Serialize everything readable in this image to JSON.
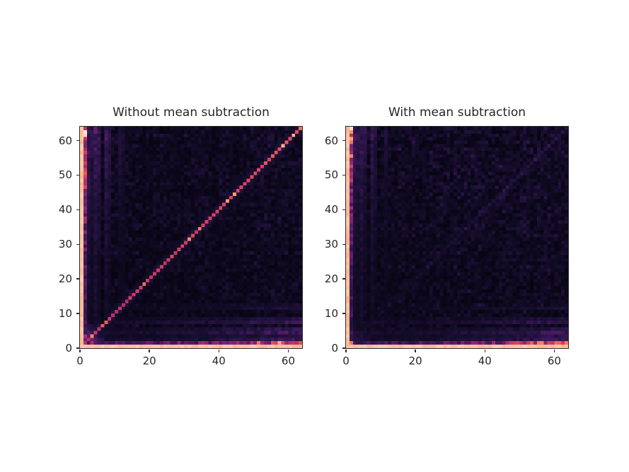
{
  "chart_data": [
    {
      "type": "heatmap",
      "title": "Without mean subtraction",
      "grid_size": 64,
      "x_range": [
        0,
        64
      ],
      "y_range": [
        0,
        64
      ],
      "x_ticks": [
        0,
        20,
        40,
        60
      ],
      "y_ticks": [
        0,
        10,
        20,
        30,
        40,
        50,
        60
      ],
      "legend": "none",
      "grid": "off",
      "description": "64x64 symmetric covariance-magnitude matrix of Fourier coefficients; bright cream DC row 0 and column 0, strong red diagonal, low-frequency magenta stripes near rows/cols 1-12 that intensify away from the origin",
      "pattern": {
        "seed": 7,
        "dc_value": 0.97,
        "noise_base": 0.1,
        "noise_gradient": 0.1,
        "origin_block": 1.0,
        "stripe_power": 2.0,
        "stripes": [
          {
            "idx": 1,
            "lo": 0.3,
            "hi": 0.8
          },
          {
            "idx": 2,
            "lo": 0.08,
            "hi": 0.3
          },
          {
            "idx": 3,
            "lo": 0.05,
            "hi": 0.22
          },
          {
            "idx": 4,
            "lo": 0.1,
            "hi": 0.34
          },
          {
            "idx": 5,
            "lo": 0.06,
            "hi": 0.26
          },
          {
            "idx": 7,
            "lo": 0.09,
            "hi": 0.3
          },
          {
            "idx": 8,
            "lo": 0.05,
            "hi": 0.2
          },
          {
            "idx": 11,
            "lo": 0.04,
            "hi": 0.16
          },
          {
            "idx": 12,
            "lo": 0.03,
            "hi": 0.13
          }
        ],
        "diagonal": {
          "start": 1,
          "lo": 0.66,
          "hi": 0.8,
          "jitter": 0.1,
          "pop": 0.1,
          "wing": 0.17
        },
        "special_cells": [
          {
            "r": 3,
            "c": 3,
            "v": 0.88
          },
          {
            "r": 3,
            "c": 1,
            "v": 0.62
          },
          {
            "r": 63,
            "c": 63,
            "v": 0.85
          }
        ]
      }
    },
    {
      "type": "heatmap",
      "title": "With mean subtraction",
      "grid_size": 64,
      "x_range": [
        0,
        64
      ],
      "y_range": [
        0,
        64
      ],
      "x_ticks": [
        0,
        20,
        40,
        60
      ],
      "y_ticks": [
        0,
        10,
        20,
        30,
        40,
        50,
        60
      ],
      "legend": "none",
      "grid": "off",
      "description": "Same matrix after mean subtraction: cream DC row/column and red low-frequency edge stripes remain, but the diagonal is strongly suppressed (only a faint purple trace toward high frequencies); background is dark noise slightly brighter toward the upper right",
      "pattern": {
        "seed": 13,
        "dc_value": 0.97,
        "noise_base": 0.11,
        "noise_gradient": 0.16,
        "origin_block": 0.5,
        "stripe_power": 2.4,
        "stripes": [
          {
            "idx": 1,
            "lo": 0.28,
            "hi": 0.8
          },
          {
            "idx": 2,
            "lo": 0.08,
            "hi": 0.28
          },
          {
            "idx": 3,
            "lo": 0.06,
            "hi": 0.24
          },
          {
            "idx": 4,
            "lo": 0.1,
            "hi": 0.3
          },
          {
            "idx": 5,
            "lo": 0.05,
            "hi": 0.22
          },
          {
            "idx": 7,
            "lo": 0.08,
            "hi": 0.26
          },
          {
            "idx": 8,
            "lo": 0.04,
            "hi": 0.18
          },
          {
            "idx": 11,
            "lo": 0.04,
            "hi": 0.15
          }
        ],
        "diagonal": {
          "start": 6,
          "lo": 0.05,
          "hi": 0.22,
          "jitter": 0.07,
          "pop": 0.06,
          "wing": 0.06
        },
        "special_cells": [
          {
            "r": 1,
            "c": 1,
            "v": 0.85
          }
        ]
      }
    }
  ],
  "colormap": {
    "name": "magma-rocket",
    "stops": [
      [
        0.0,
        "#070512"
      ],
      [
        0.1,
        "#150d2b"
      ],
      [
        0.2,
        "#261341"
      ],
      [
        0.3,
        "#3b1858"
      ],
      [
        0.4,
        "#571d68"
      ],
      [
        0.5,
        "#7b2474"
      ],
      [
        0.58,
        "#9c2b72"
      ],
      [
        0.66,
        "#bd3368"
      ],
      [
        0.74,
        "#d94360"
      ],
      [
        0.82,
        "#ee5e52"
      ],
      [
        0.9,
        "#f9996c"
      ],
      [
        1.0,
        "#fbe7cd"
      ]
    ]
  },
  "style_colors": {
    "figure_background": "#ffffff",
    "text": "#262626",
    "spine": "#2b2b2b"
  }
}
